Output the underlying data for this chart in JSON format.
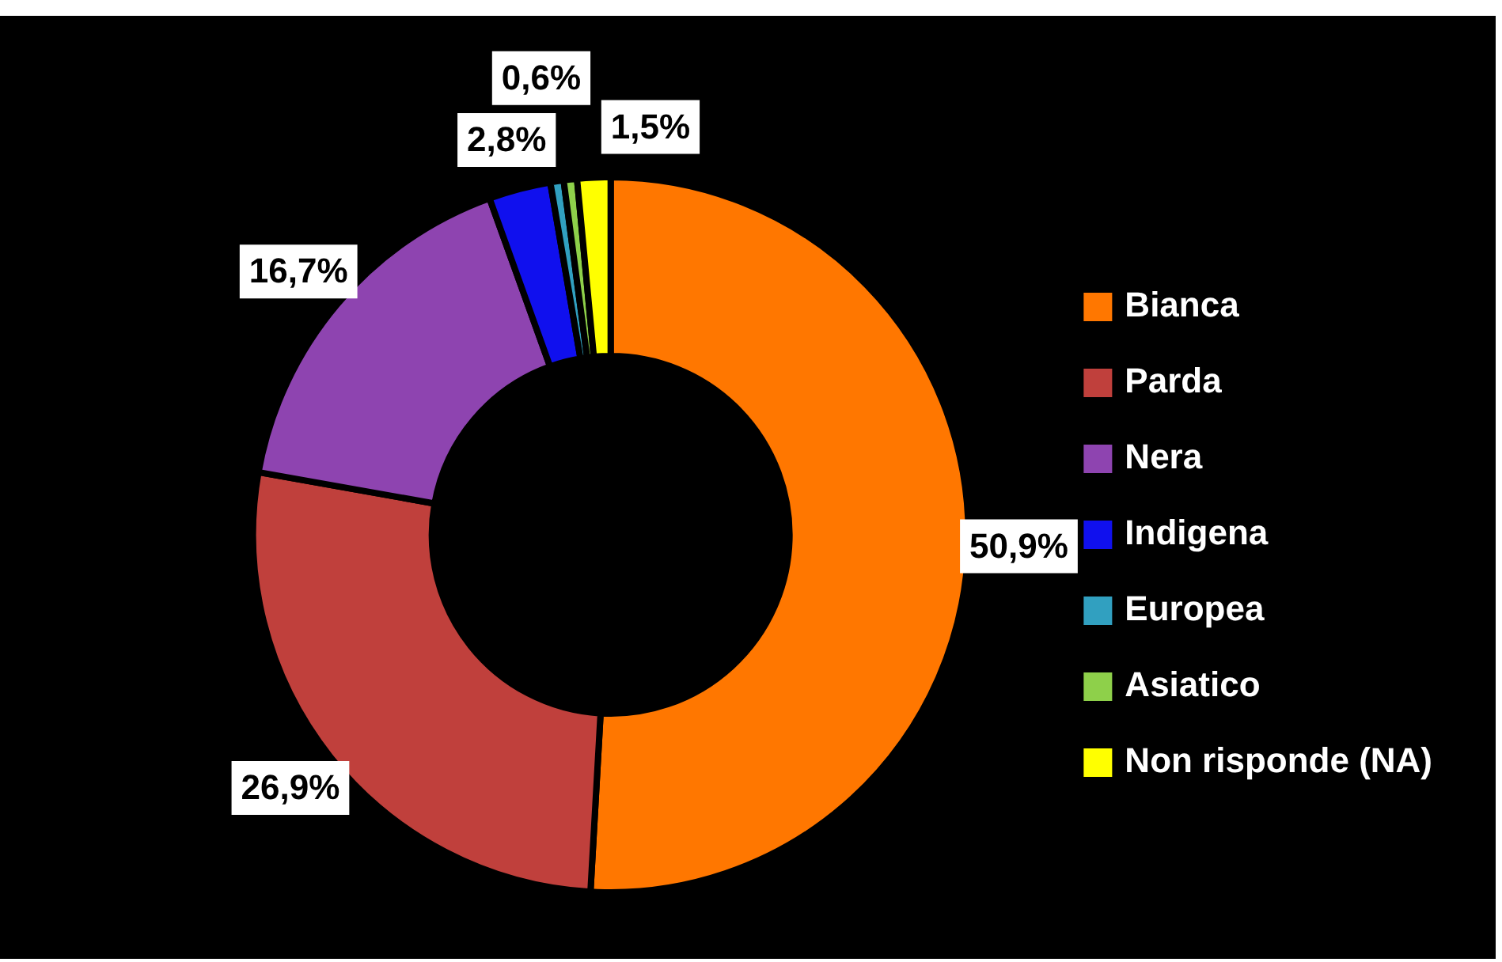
{
  "chart_data": {
    "type": "donut",
    "categories": [
      "Bianca",
      "Parda",
      "Nera",
      "Indigena",
      "Europea",
      "Asiatico",
      "Non risponde (NA)"
    ],
    "values": [
      50.9,
      26.9,
      16.7,
      2.8,
      0.6,
      0.6,
      1.5
    ],
    "colors": [
      "#ff7700",
      "#c0403c",
      "#8e44b0",
      "#1010ee",
      "#31a0c0",
      "#8ed04a",
      "#ffff00"
    ],
    "value_labels": [
      "50,9%",
      "26,9%",
      "16,7%",
      "2,8%",
      "0,6%",
      null,
      "1,5%"
    ],
    "legend": "right"
  }
}
